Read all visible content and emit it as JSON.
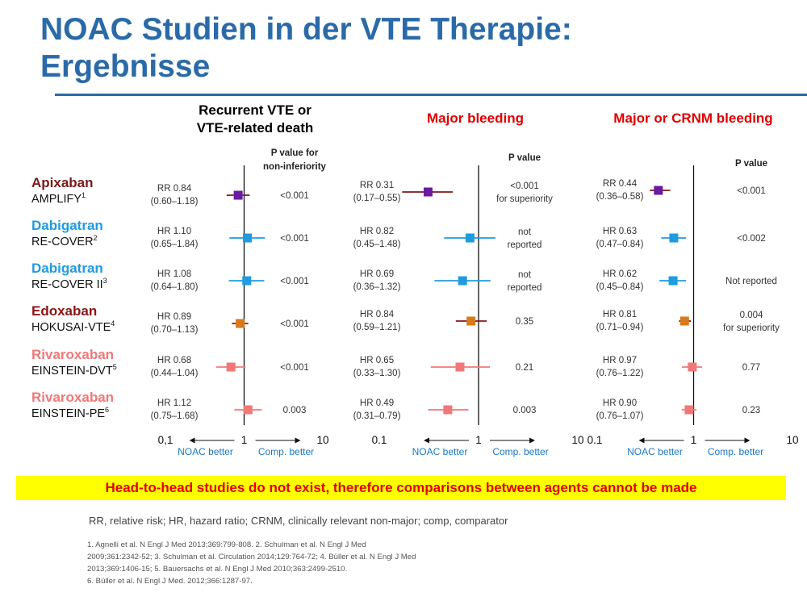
{
  "slide": {
    "title_line1": "NOAC Studien in der VTE Therapie:",
    "title_line2": "Ergebnisse",
    "banner": "Head-to-head studies do not exist, therefore comparisons between agents cannot be made",
    "abbreviations": "RR, relative risk; HR, hazard ratio; CRNM, clinically relevant non-major; comp, comparator",
    "references": [
      "1. Agnelli et al. N Engl J Med 2013;369:799-808. 2. Schulman et al. N Engl J Med",
      "2009;361:2342-52; 3. Schulman et al. Circulation 2014;129:764-72; 4. Büller et al. N Engl J Med",
      "2013;369:1406-15; 5. Bauersachs et al. N Engl J Med 2010;363:2499-2510.",
      "6. Büller et al. N Engl J Med. 2012;366:1287-97."
    ]
  },
  "colors": {
    "title": "#2a6aa8",
    "apixaban": "#7a1a1a",
    "dabigatran": "#1f9be0",
    "edoxaban": "#8b1414",
    "rivaroxaban": "#f07878",
    "accent_red": "#e00000",
    "banner_bg": "#ffff00"
  },
  "chart_data": {
    "type": "forest",
    "rows": [
      {
        "drug": "Apixaban",
        "study": "AMPLIFY",
        "ref": "1",
        "color": "#7a1a1a",
        "marker_color": "#6a1aa0",
        "line_color": "#7a1a1a"
      },
      {
        "drug": "Dabigatran",
        "study": "RE-COVER",
        "ref": "2",
        "color": "#1f9be0",
        "marker_color": "#1f9be0",
        "line_color": "#1f9be0"
      },
      {
        "drug": "Dabigatran",
        "study": "RE-COVER II",
        "ref": "3",
        "color": "#1f9be0",
        "marker_color": "#1f9be0",
        "line_color": "#1f9be0"
      },
      {
        "drug": "Edoxaban",
        "study": "HOKUSAI-VTE",
        "ref": "4",
        "color": "#8b1414",
        "marker_color": "#d97a1a",
        "line_color": "#8b1414"
      },
      {
        "drug": "Rivaroxaban",
        "study": "EINSTEIN-DVT",
        "ref": "5",
        "color": "#f07878",
        "marker_color": "#f07878",
        "line_color": "#f07878"
      },
      {
        "drug": "Rivaroxaban",
        "study": "EINSTEIN-PE",
        "ref": "6",
        "color": "#f07878",
        "marker_color": "#f07878",
        "line_color": "#f07878"
      }
    ],
    "panels": [
      {
        "title_lines": [
          "Recurrent VTE or",
          "VTE-related death"
        ],
        "title_color": "#000000",
        "p_header": [
          "P value for",
          "non-inferiority"
        ],
        "x_scale": "log",
        "xlim": [
          0.1,
          10
        ],
        "tick_labels": [
          "0,1",
          "1",
          "10"
        ],
        "left_arrow_label": "NOAC better",
        "right_arrow_label": "Comp. better",
        "estimates": [
          {
            "label": "RR 0.84",
            "ci": "(0.60–1.18)",
            "point": 0.84,
            "lo": 0.6,
            "hi": 1.18,
            "p": [
              "<0.001"
            ]
          },
          {
            "label": "HR 1.10",
            "ci": "(0.65–1.84)",
            "point": 1.1,
            "lo": 0.65,
            "hi": 1.84,
            "p": [
              "<0.001"
            ]
          },
          {
            "label": "HR 1.08",
            "ci": "(0.64–1.80)",
            "point": 1.08,
            "lo": 0.64,
            "hi": 1.8,
            "p": [
              "<0.001"
            ]
          },
          {
            "label": "HR 0.89",
            "ci": "(0.70–1.13)",
            "point": 0.89,
            "lo": 0.7,
            "hi": 1.13,
            "p": [
              "<0.001"
            ]
          },
          {
            "label": "HR 0.68",
            "ci": "(0.44–1.04)",
            "point": 0.68,
            "lo": 0.44,
            "hi": 1.04,
            "p": [
              "<0.001"
            ]
          },
          {
            "label": "HR 1.12",
            "ci": "(0.75–1.68)",
            "point": 1.12,
            "lo": 0.75,
            "hi": 1.68,
            "p": [
              "0.003"
            ]
          }
        ]
      },
      {
        "title_lines": [
          "Major bleeding"
        ],
        "title_color": "#e00000",
        "p_header": [
          "P value"
        ],
        "x_scale": "log",
        "xlim": [
          0.1,
          10
        ],
        "tick_labels": [
          "0.1",
          "1",
          "10"
        ],
        "left_arrow_label": "NOAC better",
        "right_arrow_label": "Comp. better",
        "estimates": [
          {
            "label": "RR 0.31",
            "ci": "(0.17–0.55)",
            "point": 0.31,
            "lo": 0.17,
            "hi": 0.55,
            "p": [
              "<0.001",
              "for superiority"
            ]
          },
          {
            "label": "HR 0.82",
            "ci": "(0.45–1.48)",
            "point": 0.82,
            "lo": 0.45,
            "hi": 1.48,
            "p": [
              "not",
              "reported"
            ]
          },
          {
            "label": "HR 0.69",
            "ci": "(0.36–1.32)",
            "point": 0.69,
            "lo": 0.36,
            "hi": 1.32,
            "p": [
              "not",
              "reported"
            ]
          },
          {
            "label": "HR 0.84",
            "ci": "(0.59–1.21)",
            "point": 0.84,
            "lo": 0.59,
            "hi": 1.21,
            "p": [
              "0.35"
            ]
          },
          {
            "label": "HR 0.65",
            "ci": "(0.33–1.30)",
            "point": 0.65,
            "lo": 0.33,
            "hi": 1.3,
            "p": [
              "0.21"
            ]
          },
          {
            "label": "HR 0.49",
            "ci": "(0.31–0.79)",
            "point": 0.49,
            "lo": 0.31,
            "hi": 0.79,
            "p": [
              "0.003"
            ]
          }
        ]
      },
      {
        "title_lines": [
          "Major or CRNM bleeding"
        ],
        "title_color": "#e00000",
        "p_header": [
          "P value"
        ],
        "x_scale": "log",
        "xlim": [
          0.1,
          10
        ],
        "tick_labels": [
          "0.1",
          "1",
          "10"
        ],
        "left_arrow_label": "NOAC better",
        "right_arrow_label": "Comp. better",
        "estimates": [
          {
            "label": "RR 0.44",
            "ci": "(0.36–0.58)",
            "point": 0.44,
            "lo": 0.36,
            "hi": 0.58,
            "p": [
              "<0.001"
            ]
          },
          {
            "label": "HR 0.63",
            "ci": "(0.47–0.84)",
            "point": 0.63,
            "lo": 0.47,
            "hi": 0.84,
            "p": [
              "<0.002"
            ]
          },
          {
            "label": "HR 0.62",
            "ci": "(0.45–0.84)",
            "point": 0.62,
            "lo": 0.45,
            "hi": 0.84,
            "p": [
              "Not reported"
            ]
          },
          {
            "label": "HR 0.81",
            "ci": "(0.71–0.94)",
            "point": 0.81,
            "lo": 0.71,
            "hi": 0.94,
            "p": [
              "0.004",
              "for superiority"
            ]
          },
          {
            "label": "HR 0.97",
            "ci": "(0.76–1.22)",
            "point": 0.97,
            "lo": 0.76,
            "hi": 1.22,
            "p": [
              "0.77"
            ]
          },
          {
            "label": "HR 0.90",
            "ci": "(0.76–1.07)",
            "point": 0.9,
            "lo": 0.76,
            "hi": 1.07,
            "p": [
              "0.23"
            ]
          }
        ]
      }
    ]
  }
}
